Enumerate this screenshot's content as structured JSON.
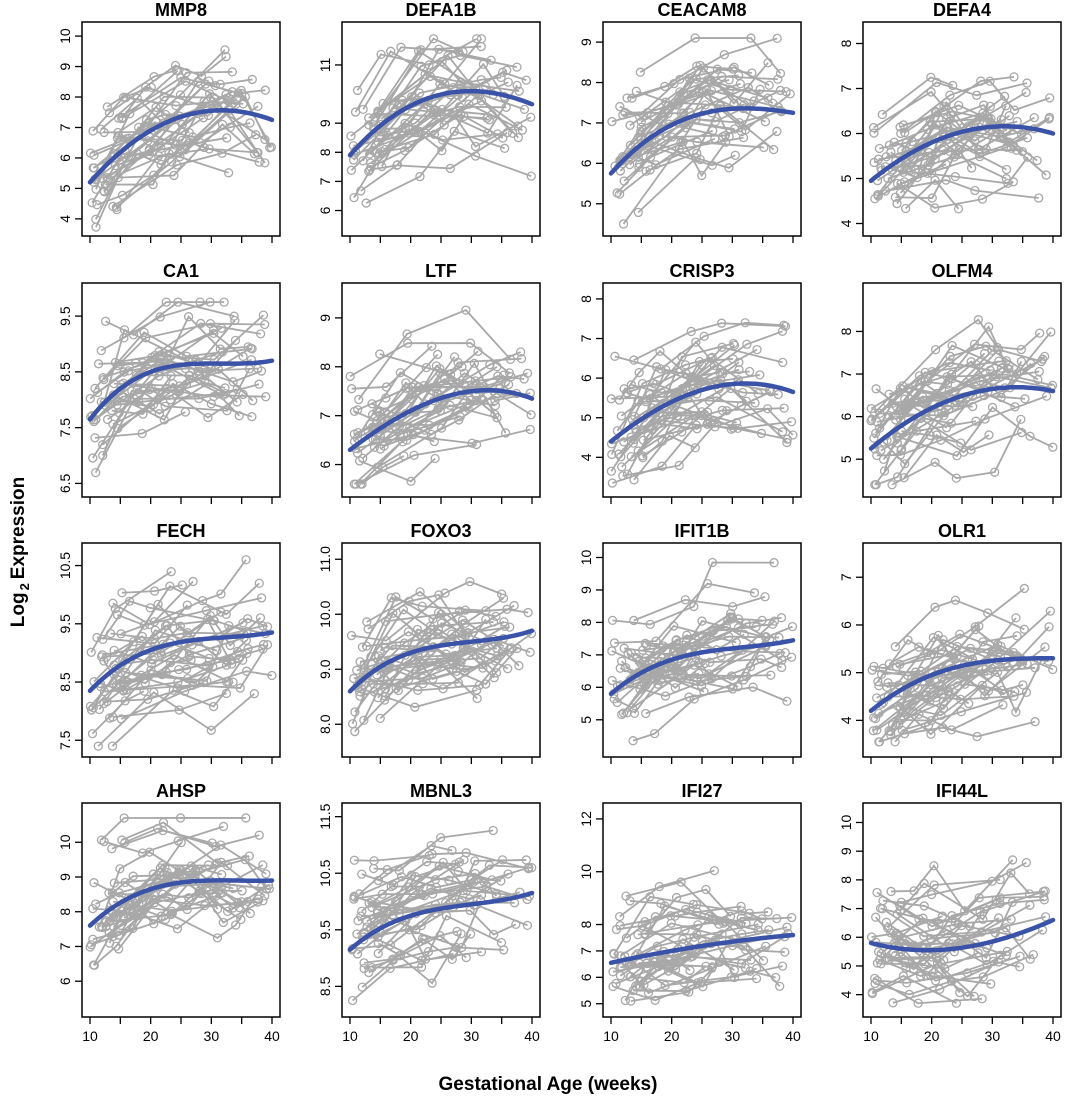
{
  "figure": {
    "ylabel_prefix": "Log",
    "ylabel_sub": "2",
    "ylabel_suffix": "Expression",
    "xlabel": "Gestational Age (weeks)"
  },
  "colors": {
    "spaghetti": "#a8a8a8",
    "fit": "#3a52a8",
    "frame": "#000000"
  },
  "chart_data": [
    {
      "type": "line",
      "title": "MMP8",
      "xlim": [
        10,
        40
      ],
      "ylim": [
        3.7,
        10.2
      ],
      "x_ticks": [
        10,
        20,
        30,
        40
      ],
      "x_tick_labels": [
        "10",
        "20",
        "30",
        "40"
      ],
      "y_ticks": [
        4,
        5,
        6,
        7,
        8,
        9,
        10
      ],
      "y_tick_labels": [
        "4",
        "5",
        "6",
        "7",
        "8",
        "9",
        "10"
      ],
      "fit": {
        "x": [
          10,
          20,
          30,
          40
        ],
        "y": [
          5.2,
          6.9,
          7.55,
          7.25
        ]
      },
      "data_min": 3.7,
      "data_max": 10.1
    },
    {
      "type": "line",
      "title": "DEFA1B",
      "xlim": [
        10,
        40
      ],
      "ylim": [
        5.4,
        12.2
      ],
      "x_ticks": [
        10,
        20,
        30,
        40
      ],
      "x_tick_labels": [
        "10",
        "20",
        "30",
        "40"
      ],
      "y_ticks": [
        6,
        7,
        8,
        9,
        11
      ],
      "y_tick_labels": [
        "6",
        "7",
        "8",
        "9",
        "11"
      ],
      "fit": {
        "x": [
          10,
          20,
          30,
          40
        ],
        "y": [
          7.9,
          9.6,
          10.1,
          9.65
        ]
      },
      "data_min": 5.6,
      "data_max": 11.9
    },
    {
      "type": "line",
      "title": "CEACAM8",
      "xlim": [
        10,
        40
      ],
      "ylim": [
        4.4,
        9.3
      ],
      "x_ticks": [
        10,
        20,
        30,
        40
      ],
      "x_tick_labels": [
        "10",
        "20",
        "30",
        "40"
      ],
      "y_ticks": [
        5,
        6,
        7,
        8,
        9
      ],
      "y_tick_labels": [
        "5",
        "6",
        "7",
        "8",
        "9"
      ],
      "fit": {
        "x": [
          10,
          20,
          30,
          40
        ],
        "y": [
          5.75,
          6.95,
          7.35,
          7.25
        ]
      },
      "data_min": 4.5,
      "data_max": 9.1
    },
    {
      "type": "line",
      "title": "DEFA4",
      "xlim": [
        10,
        40
      ],
      "ylim": [
        3.9,
        8.3
      ],
      "x_ticks": [
        10,
        20,
        30,
        40
      ],
      "x_tick_labels": [
        "10",
        "20",
        "30",
        "40"
      ],
      "y_ticks": [
        4,
        5,
        6,
        7,
        8
      ],
      "y_tick_labels": [
        "4",
        "5",
        "6",
        "7",
        "8"
      ],
      "fit": {
        "x": [
          10,
          20,
          30,
          40
        ],
        "y": [
          4.95,
          5.8,
          6.15,
          6.0
        ]
      },
      "data_min": 4.0,
      "data_max": 8.1
    },
    {
      "type": "line",
      "title": "CA1",
      "xlim": [
        10,
        40
      ],
      "ylim": [
        6.4,
        9.95
      ],
      "x_ticks": [
        10,
        20,
        30,
        40
      ],
      "x_tick_labels": [
        "10",
        "20",
        "30",
        "40"
      ],
      "y_ticks": [
        6.5,
        7.5,
        8.5,
        9.5
      ],
      "y_tick_labels": [
        "6.5",
        "7.5",
        "8.5",
        "9.5"
      ],
      "fit": {
        "x": [
          10,
          20,
          30,
          40
        ],
        "y": [
          7.65,
          8.5,
          8.65,
          8.7
        ]
      },
      "data_min": 6.5,
      "data_max": 9.75
    },
    {
      "type": "line",
      "title": "LTF",
      "xlim": [
        10,
        40
      ],
      "ylim": [
        5.5,
        9.55
      ],
      "x_ticks": [
        10,
        20,
        30,
        40
      ],
      "x_tick_labels": [
        "10",
        "20",
        "30",
        "40"
      ],
      "y_ticks": [
        6,
        7,
        8,
        9
      ],
      "y_tick_labels": [
        "6",
        "7",
        "8",
        "9"
      ],
      "fit": {
        "x": [
          10,
          20,
          30,
          40
        ],
        "y": [
          6.3,
          7.1,
          7.5,
          7.35
        ]
      },
      "data_min": 5.6,
      "data_max": 9.25
    },
    {
      "type": "line",
      "title": "CRISP3",
      "xlim": [
        10,
        40
      ],
      "ylim": [
        3.2,
        8.2
      ],
      "x_ticks": [
        10,
        20,
        30,
        40
      ],
      "x_tick_labels": [
        "10",
        "20",
        "30",
        "40"
      ],
      "y_ticks": [
        4,
        5,
        6,
        7,
        8
      ],
      "y_tick_labels": [
        "4",
        "5",
        "6",
        "7",
        "8"
      ],
      "fit": {
        "x": [
          10,
          20,
          30,
          40
        ],
        "y": [
          4.4,
          5.4,
          5.85,
          5.65
        ]
      },
      "data_min": 3.35,
      "data_max": 7.95
    },
    {
      "type": "line",
      "title": "OLFM4",
      "xlim": [
        10,
        40
      ],
      "ylim": [
        4.3,
        8.95
      ],
      "x_ticks": [
        10,
        20,
        30,
        40
      ],
      "x_tick_labels": [
        "10",
        "20",
        "30",
        "40"
      ],
      "y_ticks": [
        5,
        6,
        7,
        8
      ],
      "y_tick_labels": [
        "5",
        "6",
        "7",
        "8"
      ],
      "fit": {
        "x": [
          10,
          20,
          30,
          40
        ],
        "y": [
          5.25,
          6.2,
          6.65,
          6.6
        ]
      },
      "data_min": 4.4,
      "data_max": 8.8
    },
    {
      "type": "line",
      "title": "FECH",
      "xlim": [
        10,
        40
      ],
      "ylim": [
        7.35,
        10.75
      ],
      "x_ticks": [
        10,
        20,
        30,
        40
      ],
      "x_tick_labels": [
        "10",
        "20",
        "30",
        "40"
      ],
      "y_ticks": [
        7.5,
        8.5,
        9.5,
        10.5
      ],
      "y_tick_labels": [
        "7.5",
        "8.5",
        "9.5",
        "10.5"
      ],
      "fit": {
        "x": [
          10,
          20,
          30,
          40
        ],
        "y": [
          8.35,
          9.05,
          9.25,
          9.35
        ]
      },
      "data_min": 7.4,
      "data_max": 10.6
    },
    {
      "type": "line",
      "title": "FOXO3",
      "xlim": [
        10,
        40
      ],
      "ylim": [
        7.55,
        11.15
      ],
      "x_ticks": [
        10,
        20,
        30,
        40
      ],
      "x_tick_labels": [
        "10",
        "20",
        "30",
        "40"
      ],
      "y_ticks": [
        8.0,
        9.0,
        10.0,
        11.0
      ],
      "y_tick_labels": [
        "8.0",
        "9.0",
        "10.0",
        "11.0"
      ],
      "fit": {
        "x": [
          10,
          20,
          30,
          40
        ],
        "y": [
          8.6,
          9.3,
          9.5,
          9.7
        ]
      },
      "data_min": 7.7,
      "data_max": 11.0
    },
    {
      "type": "line",
      "title": "IFIT1B",
      "xlim": [
        10,
        40
      ],
      "ylim": [
        4.1,
        10.2
      ],
      "x_ticks": [
        10,
        20,
        30,
        40
      ],
      "x_tick_labels": [
        "10",
        "20",
        "30",
        "40"
      ],
      "y_ticks": [
        5,
        6,
        7,
        8,
        9,
        10
      ],
      "y_tick_labels": [
        "5",
        "6",
        "7",
        "8",
        "9",
        "10"
      ],
      "fit": {
        "x": [
          10,
          20,
          30,
          40
        ],
        "y": [
          5.8,
          6.85,
          7.2,
          7.45
        ]
      },
      "data_min": 4.35,
      "data_max": 9.9
    },
    {
      "type": "line",
      "title": "OLR1",
      "xlim": [
        10,
        40
      ],
      "ylim": [
        3.4,
        7.55
      ],
      "x_ticks": [
        10,
        20,
        30,
        40
      ],
      "x_tick_labels": [
        "10",
        "20",
        "30",
        "40"
      ],
      "y_ticks": [
        4,
        5,
        6,
        7
      ],
      "y_tick_labels": [
        "4",
        "5",
        "6",
        "7"
      ],
      "fit": {
        "x": [
          10,
          20,
          30,
          40
        ],
        "y": [
          4.2,
          4.95,
          5.25,
          5.3
        ]
      },
      "data_min": 3.55,
      "data_max": 7.25
    },
    {
      "type": "line",
      "title": "AHSP",
      "xlim": [
        10,
        40
      ],
      "ylim": [
        5.2,
        10.9
      ],
      "x_ticks": [
        10,
        20,
        30,
        40
      ],
      "x_tick_labels": [
        "10",
        "20",
        "30",
        "40"
      ],
      "y_ticks": [
        6,
        7,
        8,
        9,
        10
      ],
      "y_tick_labels": [
        "6",
        "7",
        "8",
        "9",
        "10"
      ],
      "fit": {
        "x": [
          10,
          20,
          30,
          40
        ],
        "y": [
          7.6,
          8.65,
          8.9,
          8.9
        ]
      },
      "data_min": 5.35,
      "data_max": 10.7
    },
    {
      "type": "line",
      "title": "MBNL3",
      "xlim": [
        10,
        40
      ],
      "ylim": [
        8.1,
        11.6
      ],
      "x_ticks": [
        10,
        20,
        30,
        40
      ],
      "x_tick_labels": [
        "10",
        "20",
        "30",
        "40"
      ],
      "y_ticks": [
        8.5,
        9.5,
        10.5,
        11.5
      ],
      "y_tick_labels": [
        "8.5",
        "9.5",
        "10.5",
        "11.5"
      ],
      "fit": {
        "x": [
          10,
          20,
          30,
          40
        ],
        "y": [
          9.15,
          9.75,
          9.95,
          10.15
        ]
      },
      "data_min": 8.25,
      "data_max": 11.45
    },
    {
      "type": "line",
      "title": "IFI27",
      "xlim": [
        10,
        40
      ],
      "ylim": [
        4.8,
        12.3
      ],
      "x_ticks": [
        10,
        20,
        30,
        40
      ],
      "x_tick_labels": [
        "10",
        "20",
        "30",
        "40"
      ],
      "y_ticks": [
        5,
        6,
        7,
        8,
        10,
        12
      ],
      "y_tick_labels": [
        "5",
        "6",
        "7",
        "8",
        "10",
        "12"
      ],
      "fit": {
        "x": [
          10,
          20,
          30,
          40
        ],
        "y": [
          6.55,
          7.0,
          7.35,
          7.6
        ]
      },
      "data_min": 5.1,
      "data_max": 11.75
    },
    {
      "type": "line",
      "title": "IFI44L",
      "xlim": [
        10,
        40
      ],
      "ylim": [
        3.5,
        10.4
      ],
      "x_ticks": [
        10,
        20,
        30,
        40
      ],
      "x_tick_labels": [
        "10",
        "20",
        "30",
        "40"
      ],
      "y_ticks": [
        4,
        5,
        6,
        7,
        8,
        9,
        10
      ],
      "y_tick_labels": [
        "4",
        "5",
        "6",
        "7",
        "8",
        "9",
        "10"
      ],
      "fit": {
        "x": [
          10,
          20,
          30,
          40
        ],
        "y": [
          5.8,
          5.55,
          5.85,
          6.6
        ]
      },
      "data_min": 3.7,
      "data_max": 10.1
    }
  ]
}
